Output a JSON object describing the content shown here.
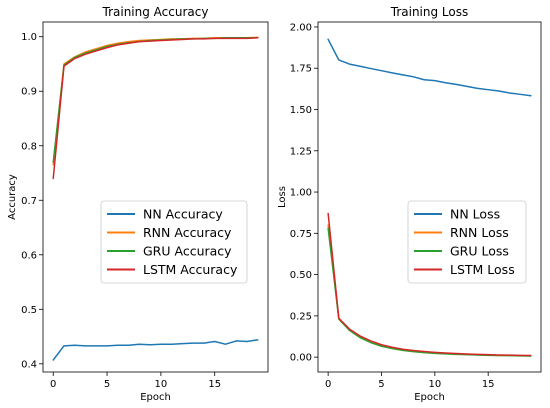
{
  "chart_data": [
    {
      "type": "line",
      "title": "Training Accuracy",
      "xlabel": "Epoch",
      "ylabel": "Accuracy",
      "xlim": [
        -0.95,
        19.95
      ],
      "ylim": [
        0.385,
        1.027
      ],
      "xticks": [
        0,
        5,
        10,
        15
      ],
      "yticks": [
        0.4,
        0.5,
        0.6,
        0.7,
        0.8,
        0.9,
        1.0
      ],
      "ytick_labels": [
        "0.4",
        "0.5",
        "0.6",
        "0.7",
        "0.8",
        "0.9",
        "1.0"
      ],
      "grid": false,
      "legend": "center-right",
      "x": [
        0,
        1,
        2,
        3,
        4,
        5,
        6,
        7,
        8,
        9,
        10,
        11,
        12,
        13,
        14,
        15,
        16,
        17,
        18,
        19
      ],
      "series": [
        {
          "name": "NN Accuracy",
          "color": "#1f77b4",
          "values": [
            0.407,
            0.433,
            0.434,
            0.433,
            0.433,
            0.433,
            0.434,
            0.434,
            0.436,
            0.435,
            0.436,
            0.436,
            0.437,
            0.438,
            0.438,
            0.441,
            0.436,
            0.442,
            0.441,
            0.444
          ]
        },
        {
          "name": "RNN Accuracy",
          "color": "#ff7f0e",
          "values": [
            0.765,
            0.95,
            0.963,
            0.972,
            0.978,
            0.984,
            0.988,
            0.991,
            0.993,
            0.994,
            0.995,
            0.996,
            0.996,
            0.997,
            0.997,
            0.998,
            0.998,
            0.998,
            0.998,
            0.999
          ]
        },
        {
          "name": "GRU Accuracy",
          "color": "#2ca02c",
          "values": [
            0.77,
            0.948,
            0.962,
            0.97,
            0.976,
            0.982,
            0.986,
            0.989,
            0.991,
            0.993,
            0.994,
            0.995,
            0.996,
            0.996,
            0.997,
            0.997,
            0.998,
            0.998,
            0.998,
            0.998
          ]
        },
        {
          "name": "LSTM Accuracy",
          "color": "#d62728",
          "values": [
            0.74,
            0.946,
            0.96,
            0.968,
            0.974,
            0.98,
            0.985,
            0.988,
            0.991,
            0.992,
            0.993,
            0.994,
            0.995,
            0.996,
            0.996,
            0.997,
            0.997,
            0.997,
            0.997,
            0.998
          ]
        }
      ]
    },
    {
      "type": "line",
      "title": "Training Loss",
      "xlabel": "Epoch",
      "ylabel": "Loss",
      "xlim": [
        -0.95,
        19.95
      ],
      "ylim": [
        -0.09,
        2.03
      ],
      "xticks": [
        0,
        5,
        10,
        15
      ],
      "yticks": [
        0,
        0.25,
        0.5,
        0.75,
        1.0,
        1.25,
        1.5,
        1.75,
        2.0
      ],
      "ytick_labels": [
        "0.00",
        "0.25",
        "0.50",
        "0.75",
        "1.00",
        "1.25",
        "1.50",
        "1.75",
        "2.00"
      ],
      "grid": false,
      "legend": "center-right",
      "x": [
        0,
        1,
        2,
        3,
        4,
        5,
        6,
        7,
        8,
        9,
        10,
        11,
        12,
        13,
        14,
        15,
        16,
        17,
        18,
        19
      ],
      "series": [
        {
          "name": "NN Loss",
          "color": "#1f77b4",
          "values": [
            1.925,
            1.8,
            1.775,
            1.762,
            1.748,
            1.735,
            1.722,
            1.71,
            1.698,
            1.68,
            1.675,
            1.662,
            1.652,
            1.64,
            1.628,
            1.62,
            1.612,
            1.6,
            1.592,
            1.583
          ]
        },
        {
          "name": "RNN Loss",
          "color": "#ff7f0e",
          "values": [
            0.8,
            0.235,
            0.165,
            0.12,
            0.09,
            0.068,
            0.053,
            0.042,
            0.034,
            0.028,
            0.024,
            0.021,
            0.018,
            0.016,
            0.014,
            0.012,
            0.011,
            0.01,
            0.009,
            0.008
          ]
        },
        {
          "name": "GRU Loss",
          "color": "#2ca02c",
          "values": [
            0.78,
            0.23,
            0.162,
            0.118,
            0.088,
            0.066,
            0.052,
            0.041,
            0.033,
            0.027,
            0.023,
            0.02,
            0.017,
            0.015,
            0.013,
            0.011,
            0.01,
            0.009,
            0.008,
            0.007
          ]
        },
        {
          "name": "LSTM Loss",
          "color": "#d62728",
          "values": [
            0.87,
            0.235,
            0.17,
            0.128,
            0.098,
            0.075,
            0.06,
            0.048,
            0.04,
            0.034,
            0.029,
            0.025,
            0.022,
            0.019,
            0.017,
            0.015,
            0.013,
            0.012,
            0.011,
            0.01
          ]
        }
      ]
    }
  ]
}
